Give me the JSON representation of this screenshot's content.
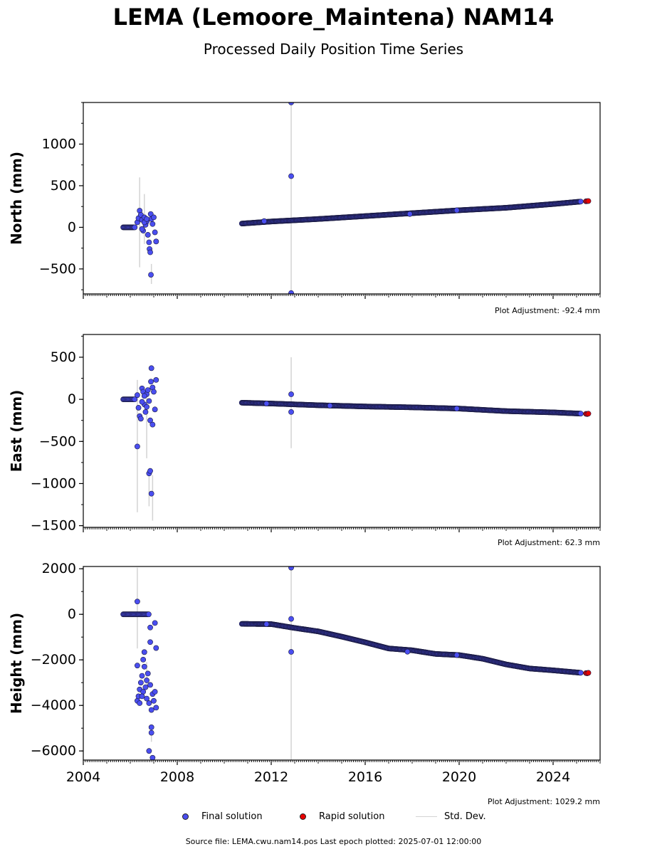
{
  "title": "LEMA (Lemoore_Maintena) NAM14",
  "subtitle": "Processed Daily Position Time Series",
  "colors": {
    "final": "#4a4ef0",
    "rapid": "#e80000",
    "stddev": "#d3d3d3",
    "edge": "#1a1a40"
  },
  "legend": {
    "final": "Final solution",
    "rapid": "Rapid solution",
    "stddev": "Std. Dev."
  },
  "footer": "Source file: LEMA.cwu.nam14.pos  Last epoch plotted: 2025-07-01 12:00:00",
  "chart_data": [
    {
      "type": "scatter",
      "ylabel": "North (mm)",
      "xlim": [
        2004.0,
        2026.0
      ],
      "ylim": [
        -800,
        1500
      ],
      "yticks": [
        1000,
        500,
        0,
        -500
      ],
      "ytick_labels": [
        "1000",
        "500",
        "0",
        "−500"
      ],
      "xticks": [
        2004,
        2008,
        2012,
        2016,
        2020,
        2024
      ],
      "xtick_labels": [],
      "adjustment": "Plot Adjustment: -92.4 mm",
      "final_trend": {
        "x": [
          2010.75,
          2012.0,
          2014.0,
          2016.0,
          2018.0,
          2020.0,
          2022.0,
          2024.0,
          2025.2
        ],
        "y": [
          45,
          70,
          100,
          135,
          170,
          205,
          235,
          280,
          310
        ]
      },
      "final_early": {
        "x": [
          2005.7,
          2006.0,
          2006.2
        ],
        "y": [
          0,
          0,
          0
        ]
      },
      "final_scatter": [
        [
          2006.3,
          60
        ],
        [
          2006.35,
          110
        ],
        [
          2006.4,
          200
        ],
        [
          2006.45,
          150
        ],
        [
          2006.5,
          90
        ],
        [
          2006.55,
          -40
        ],
        [
          2006.6,
          120
        ],
        [
          2006.65,
          30
        ],
        [
          2006.7,
          70
        ],
        [
          2006.75,
          -90
        ],
        [
          2006.8,
          -180
        ],
        [
          2006.82,
          -260
        ],
        [
          2006.85,
          -300
        ],
        [
          2006.87,
          160
        ],
        [
          2006.9,
          100
        ],
        [
          2006.95,
          40
        ],
        [
          2007.0,
          120
        ],
        [
          2007.05,
          -60
        ],
        [
          2007.1,
          -170
        ],
        [
          2006.88,
          -570
        ],
        [
          2006.5,
          -20
        ],
        [
          2006.6,
          60
        ],
        [
          2006.7,
          100
        ]
      ],
      "final_outliers": [
        [
          2012.85,
          615
        ],
        [
          2012.85,
          1500
        ],
        [
          2012.85,
          -790
        ],
        [
          2017.9,
          160
        ],
        [
          2019.9,
          205
        ],
        [
          2011.7,
          75
        ]
      ],
      "errorbars": [
        [
          2006.4,
          -480,
          600
        ],
        [
          2006.6,
          -200,
          400
        ],
        [
          2006.9,
          -680,
          -440
        ],
        [
          2012.85,
          -800,
          1500
        ],
        [
          2017.9,
          130,
          200
        ]
      ],
      "rapid": [
        [
          2025.4,
          313
        ],
        [
          2025.45,
          315
        ],
        [
          2025.5,
          316
        ]
      ]
    },
    {
      "type": "scatter",
      "ylabel": "East (mm)",
      "xlim": [
        2004.0,
        2026.0
      ],
      "ylim": [
        -1520,
        770
      ],
      "yticks": [
        500,
        0,
        -500,
        -1000,
        -1500
      ],
      "ytick_labels": [
        "500",
        "0",
        "−500",
        "−1000",
        "−1500"
      ],
      "xticks": [
        2004,
        2008,
        2012,
        2016,
        2020,
        2024
      ],
      "xtick_labels": [],
      "adjustment": "Plot Adjustment: 62.3 mm",
      "final_trend": {
        "x": [
          2010.75,
          2012.0,
          2014.0,
          2016.0,
          2018.0,
          2020.0,
          2022.0,
          2024.0,
          2025.2
        ],
        "y": [
          -40,
          -50,
          -70,
          -85,
          -95,
          -110,
          -140,
          -155,
          -170
        ]
      },
      "final_early": {
        "x": [
          2005.7,
          2006.0,
          2006.2
        ],
        "y": [
          0,
          0,
          0
        ]
      },
      "final_scatter": [
        [
          2006.3,
          50
        ],
        [
          2006.35,
          -100
        ],
        [
          2006.4,
          -200
        ],
        [
          2006.45,
          -230
        ],
        [
          2006.5,
          130
        ],
        [
          2006.55,
          90
        ],
        [
          2006.6,
          -60
        ],
        [
          2006.65,
          -150
        ],
        [
          2006.7,
          60
        ],
        [
          2006.75,
          110
        ],
        [
          2006.8,
          -20
        ],
        [
          2006.85,
          -250
        ],
        [
          2006.88,
          210
        ],
        [
          2006.9,
          370
        ],
        [
          2006.95,
          140
        ],
        [
          2007.0,
          90
        ],
        [
          2007.05,
          -120
        ],
        [
          2007.1,
          230
        ],
        [
          2006.5,
          -30
        ],
        [
          2006.6,
          40
        ],
        [
          2006.7,
          -90
        ],
        [
          2006.95,
          -300
        ],
        [
          2006.3,
          -560
        ],
        [
          2006.8,
          -880
        ],
        [
          2006.85,
          -850
        ],
        [
          2006.9,
          -1120
        ]
      ],
      "final_outliers": [
        [
          2012.85,
          60
        ],
        [
          2012.85,
          -150
        ],
        [
          2011.8,
          -50
        ],
        [
          2014.5,
          -75
        ],
        [
          2019.9,
          -110
        ]
      ],
      "errorbars": [
        [
          2006.3,
          -1340,
          230
        ],
        [
          2006.7,
          -700,
          130
        ],
        [
          2006.8,
          -1270,
          -840
        ],
        [
          2006.95,
          -1440,
          -900
        ],
        [
          2012.85,
          -580,
          500
        ]
      ],
      "rapid": [
        [
          2025.4,
          -172
        ],
        [
          2025.45,
          -175
        ],
        [
          2025.5,
          -170
        ]
      ]
    },
    {
      "type": "scatter",
      "ylabel": "Height (mm)",
      "xlim": [
        2004.0,
        2026.0
      ],
      "ylim": [
        -6400,
        2100
      ],
      "yticks": [
        2000,
        0,
        -2000,
        -4000,
        -6000
      ],
      "ytick_labels": [
        "2000",
        "0",
        "−2000",
        "−4000",
        "−6000"
      ],
      "xticks": [
        2004,
        2008,
        2012,
        2016,
        2020,
        2024
      ],
      "xtick_labels": [
        "2004",
        "2008",
        "2012",
        "2016",
        "2020",
        "2024"
      ],
      "adjustment": "Plot Adjustment: 1029.2 mm",
      "final_trend": {
        "x": [
          2010.75,
          2012.0,
          2013.0,
          2014.0,
          2015.0,
          2016.0,
          2017.0,
          2018.0,
          2019.0,
          2020.0,
          2021.0,
          2022.0,
          2023.0,
          2024.0,
          2025.2
        ],
        "y": [
          -420,
          -430,
          -600,
          -750,
          -980,
          -1230,
          -1500,
          -1580,
          -1740,
          -1790,
          -1950,
          -2200,
          -2380,
          -2460,
          -2570
        ]
      },
      "final_early": {
        "x": [
          2005.7,
          2006.0,
          2006.3,
          2006.7,
          2006.8
        ],
        "y": [
          0,
          0,
          0,
          0,
          0
        ]
      },
      "final_scatter": [
        [
          2006.3,
          -3800
        ],
        [
          2006.35,
          -3600
        ],
        [
          2006.4,
          -3300
        ],
        [
          2006.45,
          -3000
        ],
        [
          2006.5,
          -2700
        ],
        [
          2006.55,
          -3400
        ],
        [
          2006.6,
          -2300
        ],
        [
          2006.65,
          -3200
        ],
        [
          2006.7,
          -3700
        ],
        [
          2006.75,
          -2600
        ],
        [
          2006.8,
          -3900
        ],
        [
          2006.85,
          -3100
        ],
        [
          2006.9,
          -4200
        ],
        [
          2006.95,
          -3500
        ],
        [
          2007.0,
          -3800
        ],
        [
          2007.05,
          -3400
        ],
        [
          2007.1,
          -4100
        ],
        [
          2006.55,
          -1990
        ],
        [
          2006.6,
          -1660
        ],
        [
          2006.3,
          -2250
        ],
        [
          2006.85,
          -1220
        ],
        [
          2006.85,
          -580
        ],
        [
          2007.1,
          -1480
        ],
        [
          2007.05,
          -380
        ],
        [
          2006.3,
          560
        ],
        [
          2006.9,
          -4960
        ],
        [
          2006.9,
          -5200
        ],
        [
          2006.8,
          -6000
        ],
        [
          2006.95,
          -6300
        ],
        [
          2006.4,
          -3900
        ],
        [
          2006.5,
          -3600
        ],
        [
          2006.7,
          -2900
        ]
      ],
      "final_outliers": [
        [
          2012.85,
          2050
        ],
        [
          2012.85,
          -200
        ],
        [
          2012.85,
          -1650
        ],
        [
          2011.8,
          -430
        ],
        [
          2017.8,
          -1640
        ],
        [
          2019.9,
          -1790
        ]
      ],
      "errorbars": [
        [
          2006.3,
          -1500,
          2050
        ],
        [
          2006.7,
          -3300,
          -2100
        ],
        [
          2006.9,
          -5600,
          -5000
        ],
        [
          2012.85,
          -6400,
          2050
        ]
      ],
      "rapid": [
        [
          2025.4,
          -2580
        ],
        [
          2025.45,
          -2590
        ],
        [
          2025.5,
          -2570
        ]
      ]
    }
  ]
}
